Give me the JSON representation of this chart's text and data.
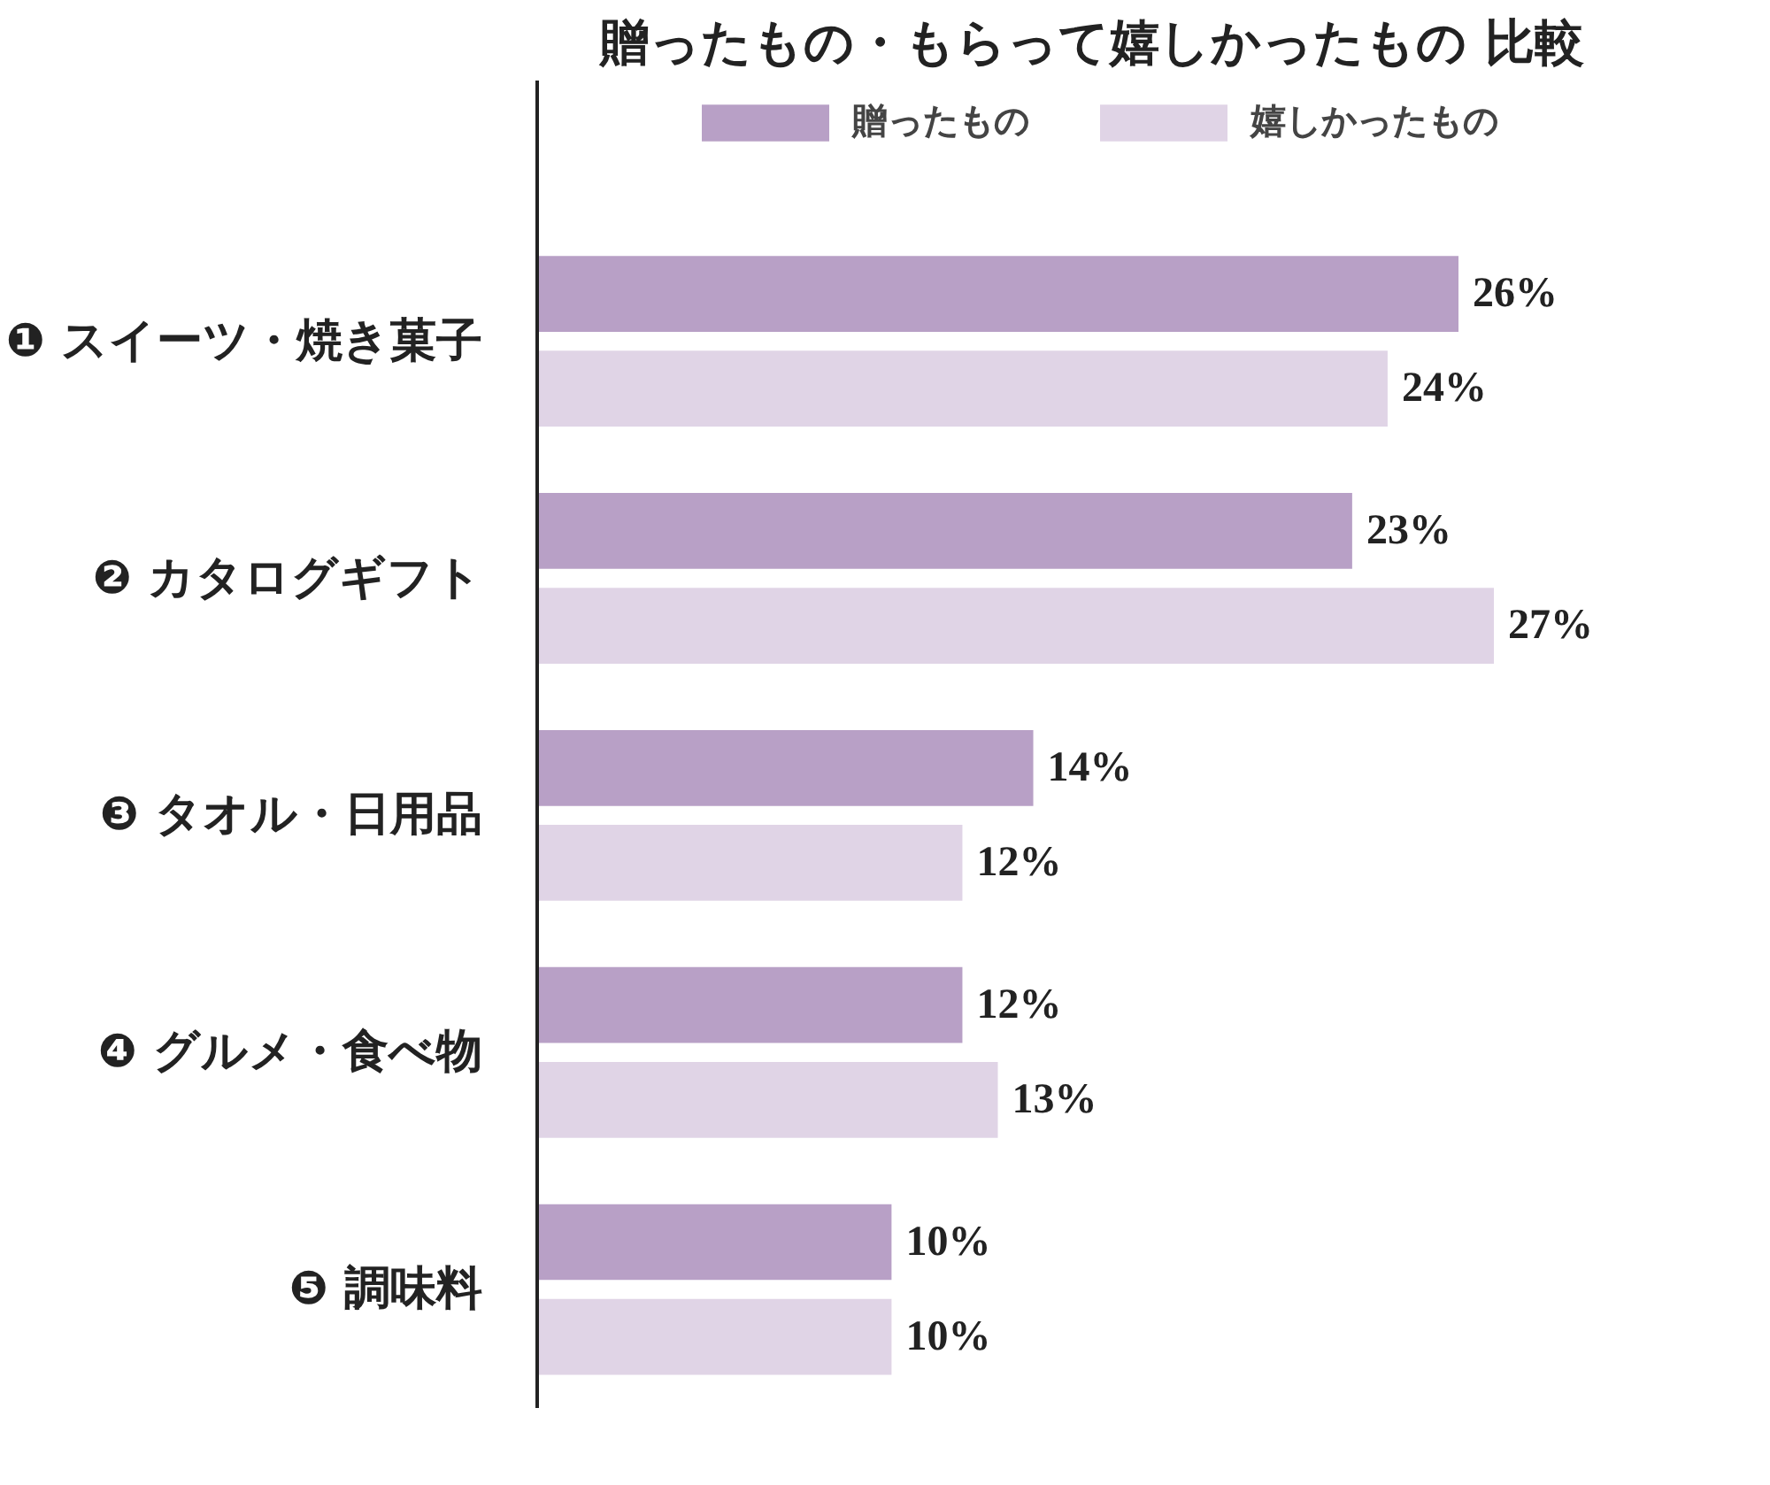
{
  "chart_data": {
    "type": "bar",
    "orientation": "horizontal",
    "title": "贈ったもの・もらって嬉しかったもの 比較",
    "categories": [
      "❶ スイーツ・焼き菓子",
      "❷ カタログギフト",
      "❸ タオル・日用品",
      "❹ グルメ・食べ物",
      "❺ 調味料"
    ],
    "series": [
      {
        "name": "贈ったもの",
        "color": "#b8a0c6",
        "values": [
          26,
          23,
          14,
          12,
          10
        ],
        "value_labels": [
          "26%",
          "23%",
          "14%",
          "12%",
          "10%"
        ]
      },
      {
        "name": "嬉しかったもの",
        "color": "#e0d4e6",
        "values": [
          24,
          27,
          12,
          13,
          10
        ],
        "value_labels": [
          "24%",
          "27%",
          "12%",
          "13%",
          "10%"
        ]
      }
    ],
    "legend": "top",
    "grid": false
  }
}
